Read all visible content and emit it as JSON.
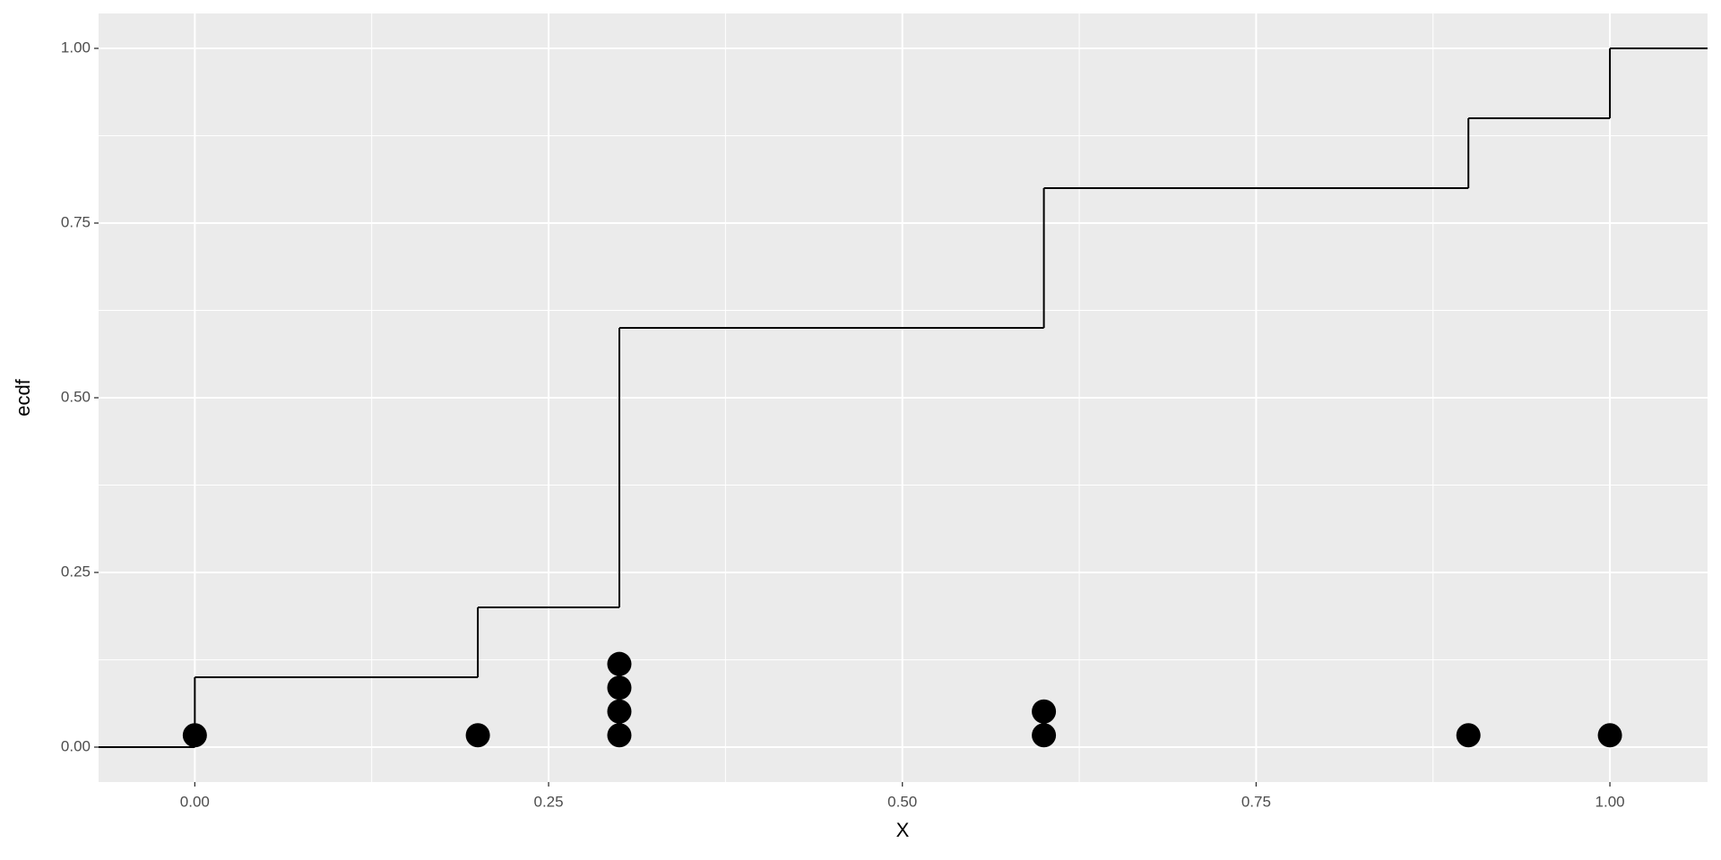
{
  "chart_data": {
    "type": "step",
    "x_label": "X",
    "y_label": "ecdf",
    "series": [
      {
        "x": [
          0,
          0.2,
          0.3,
          0.6,
          0.9,
          1.0
        ],
        "values": [
          0.1,
          0.2,
          0.6,
          0.8,
          0.9,
          1.0
        ],
        "color": "#000000"
      }
    ],
    "points": {
      "x": [
        0,
        0.2,
        0.3,
        0.3,
        0.3,
        0.3,
        0.6,
        0.6,
        0.9,
        1.0
      ],
      "y": [
        0.017,
        0.017,
        0.017,
        0.051,
        0.085,
        0.119,
        0.017,
        0.051,
        0.017,
        0.017
      ],
      "color": "#000000"
    },
    "xlim": [
      -0.068,
      1.069
    ],
    "ylim": [
      -0.05,
      1.05
    ],
    "xticks": [
      {
        "value": 0,
        "label": "0.00"
      },
      0.25,
      {
        "value": 0.5,
        "label": "0.50"
      },
      0.75,
      {
        "value": 1,
        "label": "1.00"
      }
    ],
    "yticks": [
      {
        "value": 0,
        "label": "0.00"
      },
      0.25,
      {
        "value": 0.5,
        "label": "0.50"
      },
      0.75,
      {
        "value": 1,
        "label": "1.00"
      }
    ],
    "grid": true
  }
}
